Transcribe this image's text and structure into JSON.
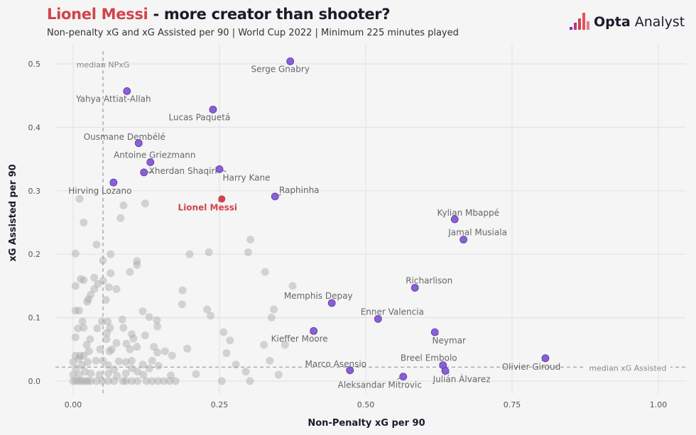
{
  "header": {
    "title_highlight": "Lionel Messi",
    "title_rest": " - more creator than shooter?",
    "subtitle": "Non-penalty xG and xG Assisted per 90 | World Cup 2022 | Minimum 225 minutes played",
    "logo_bold": "Opta",
    "logo_rest": " Analyst"
  },
  "chart_data": {
    "type": "scatter",
    "xlabel": "Non-Penalty xG per 90",
    "ylabel": "xG Assisted per 90",
    "xlim": [
      -0.03,
      1.05
    ],
    "ylim": [
      -0.02,
      0.53
    ],
    "xticks": [
      "0.00",
      "0.25",
      "0.50",
      "0.75",
      "1.00"
    ],
    "xtick_values": [
      0,
      0.25,
      0.5,
      0.75,
      1.0
    ],
    "yticks": [
      "0.0",
      "0.1",
      "0.2",
      "0.3",
      "0.4",
      "0.5"
    ],
    "ytick_values": [
      0,
      0.1,
      0.2,
      0.3,
      0.4,
      0.5
    ],
    "grid": true,
    "colors": {
      "highlight": "#d1434b",
      "labelled": "#8a5fd6",
      "others": "#b0b0b0"
    },
    "median_lines": {
      "npxg": {
        "value": 0.051,
        "label": "median NPxG"
      },
      "xa": {
        "value": 0.022,
        "label": "median xG Assisted"
      }
    },
    "labelled_players": [
      {
        "name": "Serge Gnabry",
        "x": 0.371,
        "y": 0.504
      },
      {
        "name": "Yahya Attiat-Allah",
        "x": 0.092,
        "y": 0.457
      },
      {
        "name": "Lucas Paquetá",
        "x": 0.239,
        "y": 0.428
      },
      {
        "name": "Ousmane Dembélé",
        "x": 0.112,
        "y": 0.375
      },
      {
        "name": "Antoine Griezmann",
        "x": 0.132,
        "y": 0.345
      },
      {
        "name": "Xherdan Shaqiri",
        "x": 0.121,
        "y": 0.329
      },
      {
        "name": "Harry Kane",
        "x": 0.25,
        "y": 0.334
      },
      {
        "name": "Hirving Lozano",
        "x": 0.069,
        "y": 0.313
      },
      {
        "name": "Lionel Messi",
        "x": 0.254,
        "y": 0.287,
        "highlight": true
      },
      {
        "name": "Raphinha",
        "x": 0.345,
        "y": 0.291
      },
      {
        "name": "Kylian Mbappé",
        "x": 0.652,
        "y": 0.255
      },
      {
        "name": "Jamal Musiala",
        "x": 0.667,
        "y": 0.223
      },
      {
        "name": "Richarlison",
        "x": 0.584,
        "y": 0.147
      },
      {
        "name": "Memphis Depay",
        "x": 0.442,
        "y": 0.123
      },
      {
        "name": "Enner Valencia",
        "x": 0.521,
        "y": 0.098
      },
      {
        "name": "Kieffer Moore",
        "x": 0.411,
        "y": 0.079
      },
      {
        "name": "Neymar",
        "x": 0.618,
        "y": 0.077
      },
      {
        "name": "Olivier Giroud",
        "x": 0.807,
        "y": 0.036
      },
      {
        "name": "Breel Embolo",
        "x": 0.632,
        "y": 0.025
      },
      {
        "name": "Marco Asensio",
        "x": 0.473,
        "y": 0.017
      },
      {
        "name": "Julián Álvarez",
        "x": 0.636,
        "y": 0.016
      },
      {
        "name": "Aleksandar Mitrovic",
        "x": 0.564,
        "y": 0.007
      }
    ],
    "other_players": [
      [
        0.011,
        0.287
      ],
      [
        0.086,
        0.277
      ],
      [
        0.123,
        0.28
      ],
      [
        0.081,
        0.257
      ],
      [
        0.018,
        0.25
      ],
      [
        0.04,
        0.215
      ],
      [
        0.004,
        0.201
      ],
      [
        0.064,
        0.2
      ],
      [
        0.199,
        0.2
      ],
      [
        0.232,
        0.203
      ],
      [
        0.299,
        0.203
      ],
      [
        0.303,
        0.223
      ],
      [
        0.051,
        0.19
      ],
      [
        0.109,
        0.189
      ],
      [
        0.109,
        0.183
      ],
      [
        0.097,
        0.172
      ],
      [
        0.064,
        0.17
      ],
      [
        0.328,
        0.172
      ],
      [
        0.013,
        0.161
      ],
      [
        0.018,
        0.159
      ],
      [
        0.036,
        0.163
      ],
      [
        0.004,
        0.15
      ],
      [
        0.051,
        0.158
      ],
      [
        0.042,
        0.153
      ],
      [
        0.036,
        0.145
      ],
      [
        0.061,
        0.148
      ],
      [
        0.074,
        0.145
      ],
      [
        0.03,
        0.136
      ],
      [
        0.026,
        0.129
      ],
      [
        0.024,
        0.125
      ],
      [
        0.056,
        0.128
      ],
      [
        0.187,
        0.143
      ],
      [
        0.186,
        0.121
      ],
      [
        0.375,
        0.15
      ],
      [
        0.343,
        0.113
      ],
      [
        0.339,
        0.1
      ],
      [
        0.229,
        0.113
      ],
      [
        0.235,
        0.103
      ],
      [
        0.004,
        0.111
      ],
      [
        0.01,
        0.111
      ],
      [
        0.119,
        0.11
      ],
      [
        0.13,
        0.101
      ],
      [
        0.143,
        0.096
      ],
      [
        0.144,
        0.086
      ],
      [
        0.084,
        0.097
      ],
      [
        0.016,
        0.094
      ],
      [
        0.049,
        0.094
      ],
      [
        0.059,
        0.094
      ],
      [
        0.086,
        0.084
      ],
      [
        0.008,
        0.083
      ],
      [
        0.018,
        0.084
      ],
      [
        0.041,
        0.083
      ],
      [
        0.063,
        0.084
      ],
      [
        0.058,
        0.076
      ],
      [
        0.1,
        0.074
      ],
      [
        0.103,
        0.067
      ],
      [
        0.123,
        0.072
      ],
      [
        0.004,
        0.069
      ],
      [
        0.029,
        0.066
      ],
      [
        0.057,
        0.066
      ],
      [
        0.074,
        0.06
      ],
      [
        0.091,
        0.059
      ],
      [
        0.023,
        0.057
      ],
      [
        0.257,
        0.077
      ],
      [
        0.268,
        0.064
      ],
      [
        0.326,
        0.057
      ],
      [
        0.362,
        0.057
      ],
      [
        0.195,
        0.051
      ],
      [
        0.109,
        0.054
      ],
      [
        0.097,
        0.05
      ],
      [
        0.138,
        0.054
      ],
      [
        0.046,
        0.05
      ],
      [
        0.066,
        0.05
      ],
      [
        0.062,
        0.047
      ],
      [
        0.144,
        0.045
      ],
      [
        0.157,
        0.047
      ],
      [
        0.169,
        0.04
      ],
      [
        0.027,
        0.047
      ],
      [
        0.262,
        0.044
      ],
      [
        0.004,
        0.04
      ],
      [
        0.012,
        0.04
      ],
      [
        0.018,
        0.04
      ],
      [
        0.051,
        0.032
      ],
      [
        0.039,
        0.032
      ],
      [
        0.078,
        0.031
      ],
      [
        0.09,
        0.03
      ],
      [
        0.1,
        0.032
      ],
      [
        0.135,
        0.032
      ],
      [
        0.336,
        0.032
      ],
      [
        0.278,
        0.026
      ],
      [
        0.119,
        0.026
      ],
      [
        0.146,
        0.024
      ],
      [
        0.21,
        0.011
      ],
      [
        0.295,
        0.015
      ],
      [
        0.351,
        0.01
      ],
      [
        0.167,
        0.009
      ],
      [
        0.254,
        0.0
      ],
      [
        0.302,
        0.0
      ],
      [
        0.0,
        0.0
      ],
      [
        0.005,
        0.0
      ],
      [
        0.01,
        0.0
      ],
      [
        0.015,
        0.0
      ],
      [
        0.02,
        0.0
      ],
      [
        0.025,
        0.0
      ],
      [
        0.03,
        0.0
      ],
      [
        0.04,
        0.0
      ],
      [
        0.05,
        0.0
      ],
      [
        0.06,
        0.0
      ],
      [
        0.07,
        0.0
      ],
      [
        0.085,
        0.0
      ],
      [
        0.09,
        0.0
      ],
      [
        0.1,
        0.0
      ],
      [
        0.11,
        0.0
      ],
      [
        0.125,
        0.0
      ],
      [
        0.135,
        0.0
      ],
      [
        0.145,
        0.0
      ],
      [
        0.155,
        0.0
      ],
      [
        0.165,
        0.0
      ],
      [
        0.175,
        0.0
      ],
      [
        0.0,
        0.01
      ],
      [
        0.01,
        0.01
      ],
      [
        0.02,
        0.015
      ],
      [
        0.005,
        0.02
      ],
      [
        0.015,
        0.025
      ],
      [
        0.03,
        0.012
      ],
      [
        0.045,
        0.01
      ],
      [
        0.06,
        0.012
      ],
      [
        0.075,
        0.008
      ],
      [
        0.09,
        0.012
      ],
      [
        0.11,
        0.015
      ],
      [
        0.12,
        0.01
      ],
      [
        0.0,
        0.03
      ],
      [
        0.01,
        0.035
      ],
      [
        0.025,
        0.03
      ],
      [
        0.06,
        0.025
      ],
      [
        0.07,
        0.018
      ],
      [
        0.1,
        0.02
      ],
      [
        0.13,
        0.02
      ]
    ]
  }
}
